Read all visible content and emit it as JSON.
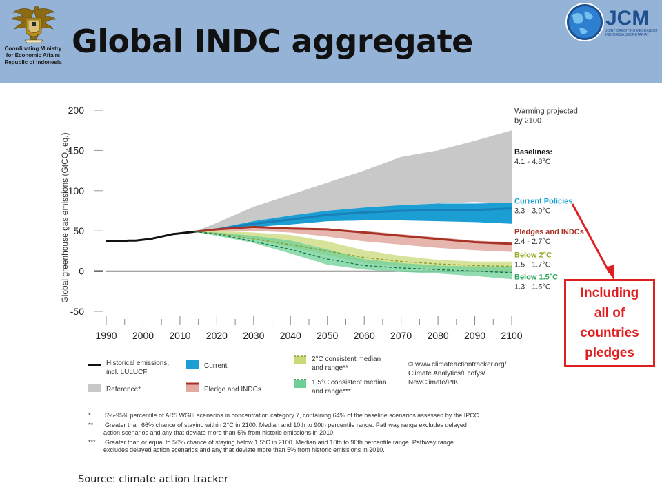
{
  "slide": {
    "title": "Global INDC aggregate",
    "ministry_caption": [
      "Coordinating Ministry",
      "for Economic Affairs",
      "Republic of Indonesia"
    ],
    "jcm_logo_text": "JCM",
    "jcm_logo_subtitle": [
      "JOINT CREDITING MECHANISM",
      "INDONESIA SECRETARIAT"
    ],
    "callout_lines": [
      "Including",
      "all of",
      "countries",
      "pledges"
    ],
    "source": "Source: climate action tracker"
  },
  "colors": {
    "header_bg": "#95b3d7",
    "callout": "#e02020",
    "reference": "#c8c8c8",
    "current": "#1a9ed4",
    "pledges": "#a83225",
    "pledges_band": "#e2a9a0",
    "below2": "#c9da78",
    "below15": "#6fcf97"
  },
  "chart_data": {
    "type": "area",
    "title": "",
    "ylabel": "Global greenhouse gas emissions (GtCO2 eq.)",
    "ylabel_parts": [
      "Global greenhouse gas emissions (GtCO",
      "2",
      " eq.)"
    ],
    "xlabel": "",
    "xlim": [
      1990,
      2100
    ],
    "ylim": [
      -50,
      200
    ],
    "xticks": [
      1990,
      2000,
      2010,
      2020,
      2030,
      2040,
      2050,
      2060,
      2070,
      2080,
      2090,
      2100
    ],
    "yticks": [
      200,
      150,
      100,
      50,
      0,
      -50
    ],
    "grid": false,
    "zero_line": true,
    "historical": {
      "name": "Historical emissions, incl. LULUCF",
      "x": [
        1990,
        1992,
        1994,
        1996,
        1998,
        2000,
        2002,
        2004,
        2006,
        2008,
        2010,
        2012,
        2014
      ],
      "y": [
        37,
        37,
        37,
        38,
        38,
        39,
        40,
        42,
        44,
        46,
        47,
        48,
        49
      ]
    },
    "bands": [
      {
        "key": "reference",
        "name": "Reference*",
        "x": [
          2014,
          2020,
          2030,
          2040,
          2050,
          2060,
          2070,
          2080,
          2090,
          2100
        ],
        "lower": [
          49,
          52,
          60,
          68,
          72,
          78,
          82,
          84,
          86,
          84
        ],
        "upper": [
          49,
          60,
          80,
          95,
          110,
          125,
          142,
          150,
          162,
          175
        ]
      },
      {
        "key": "current",
        "name": "Current",
        "x": [
          2014,
          2020,
          2030,
          2040,
          2050,
          2060,
          2070,
          2080,
          2090,
          2100
        ],
        "lower": [
          49,
          51,
          55,
          58,
          62,
          63,
          63,
          62,
          61,
          59
        ],
        "upper": [
          49,
          53,
          62,
          69,
          75,
          79,
          82,
          84,
          84,
          85
        ]
      },
      {
        "key": "pledges",
        "name": "Pledge and INDCs",
        "x": [
          2014,
          2020,
          2030,
          2040,
          2050,
          2060,
          2070,
          2080,
          2090,
          2100
        ],
        "lower": [
          49,
          50,
          50,
          48,
          43,
          37,
          33,
          29,
          26,
          24
        ],
        "upper": [
          49,
          52,
          55,
          55,
          52,
          50,
          46,
          42,
          38,
          36
        ]
      },
      {
        "key": "below2",
        "name": "2°C consistent median and range**",
        "x": [
          2014,
          2020,
          2030,
          2040,
          2050,
          2060,
          2070,
          2080,
          2090,
          2100
        ],
        "lower": [
          49,
          46,
          40,
          30,
          20,
          10,
          6,
          3,
          1,
          0
        ],
        "upper": [
          49,
          50,
          48,
          45,
          37,
          26,
          19,
          14,
          12,
          12
        ]
      },
      {
        "key": "below15",
        "name": "1.5°C consistent median and range***",
        "x": [
          2014,
          2020,
          2030,
          2040,
          2050,
          2060,
          2070,
          2080,
          2090,
          2100
        ],
        "lower": [
          49,
          44,
          35,
          22,
          8,
          2,
          -1,
          -3,
          -6,
          -10
        ],
        "upper": [
          49,
          48,
          44,
          38,
          27,
          15,
          10,
          7,
          6,
          6
        ]
      }
    ],
    "lines": [
      {
        "key": "current_median",
        "style": "solid",
        "color": "#1a7fb8",
        "x": [
          2014,
          2020,
          2030,
          2040,
          2050,
          2060,
          2070,
          2080,
          2090,
          2100
        ],
        "y": [
          49,
          52,
          59,
          64,
          70,
          73,
          75,
          76,
          76,
          78
        ]
      },
      {
        "key": "pledges_median",
        "name": "Pledges and INDCs",
        "style": "solid",
        "color": "#a83225",
        "x": [
          2014,
          2020,
          2030,
          2040,
          2050,
          2060,
          2070,
          2080,
          2090,
          2100
        ],
        "y": [
          49,
          52,
          55,
          53,
          52,
          48,
          44,
          40,
          36,
          34
        ]
      },
      {
        "key": "below2_median",
        "style": "dashed",
        "color": "#8b9d2e",
        "x": [
          2014,
          2020,
          2030,
          2040,
          2050,
          2060,
          2070,
          2080,
          2090,
          2100
        ],
        "y": [
          49,
          47,
          40,
          33,
          25,
          17,
          12,
          9,
          7,
          6
        ]
      },
      {
        "key": "below15_median",
        "style": "dashed",
        "color": "#137a45",
        "x": [
          2014,
          2020,
          2030,
          2040,
          2050,
          2060,
          2070,
          2080,
          2090,
          2100
        ],
        "y": [
          49,
          46,
          37,
          27,
          15,
          7,
          4,
          2,
          0,
          -2
        ]
      }
    ],
    "right_labels": [
      {
        "title": "Warming projected",
        "range": "by 2100",
        "color": "#333333",
        "bold": false,
        "y_value": 196
      },
      {
        "title": "Baselines:",
        "range": "4.1 - 4.8°C",
        "color": "#111111",
        "bold": true,
        "y_value": 145
      },
      {
        "title": "Current Policies",
        "range": "3.3 - 3.9°C",
        "color": "#1a9ed4",
        "bold": true,
        "y_value": 84
      },
      {
        "title": "Pledges and INDCs",
        "range": "2.4 - 2.7°C",
        "color": "#a83225",
        "bold": true,
        "y_value": 46
      },
      {
        "title": "Below 2°C",
        "range": "1.5 - 1.7°C",
        "color": "#8fae22",
        "bold": true,
        "y_value": 17
      },
      {
        "title": "Below 1.5°C",
        "range": "1.3 - 1.5°C",
        "color": "#2aa55a",
        "bold": true,
        "y_value": -10
      }
    ],
    "legend_items": [
      {
        "label": [
          "Historical emissions,",
          "incl. LULUCF"
        ],
        "swatch": "line",
        "color": "#111111"
      },
      {
        "label": [
          "Current"
        ],
        "swatch": "box",
        "color": "#1a9ed4"
      },
      {
        "label": [
          "2°C consistent median",
          "and range**"
        ],
        "swatch": "dashbox",
        "color": "#c9da78",
        "dash": "#8b9d2e"
      },
      {
        "label": [
          "Reference*"
        ],
        "swatch": "box",
        "color": "#c8c8c8"
      },
      {
        "label": [
          "Pledge and INDCs"
        ],
        "swatch": "linebox",
        "color": "#e2a9a0",
        "dash": "#a83225"
      },
      {
        "label": [
          "1.5°C consistent median",
          "and range***"
        ],
        "swatch": "dashbox",
        "color": "#6fcf97",
        "dash": "#137a45"
      }
    ],
    "credit": [
      "© www.climateactiontracker.org/",
      "Climate Analytics/Ecofys/",
      "NewClimate/PIK"
    ],
    "footnotes": [
      {
        "marker": "*",
        "lines": [
          "5%-95% percentile of AR5 WGIII scenarios in concentration category 7, containing 64% of the baseline scenarios assessed by the IPCC"
        ]
      },
      {
        "marker": "**",
        "lines": [
          "Greater than 66% chance of staying within 2°C in 2100. Median and 10th to 90th percentile range. Pathway range excludes delayed",
          "action scenarios and any that deviate more than 5% from historic emissions in 2010."
        ]
      },
      {
        "marker": "***",
        "lines": [
          "Greater than or equal to 50% chance of staying below 1.5°C in 2100. Median and 10th to 90th percentile range. Pathway range",
          "excludes delayed action scenarios and any that deviate more than 5% from historic emissions in 2010."
        ]
      }
    ]
  }
}
